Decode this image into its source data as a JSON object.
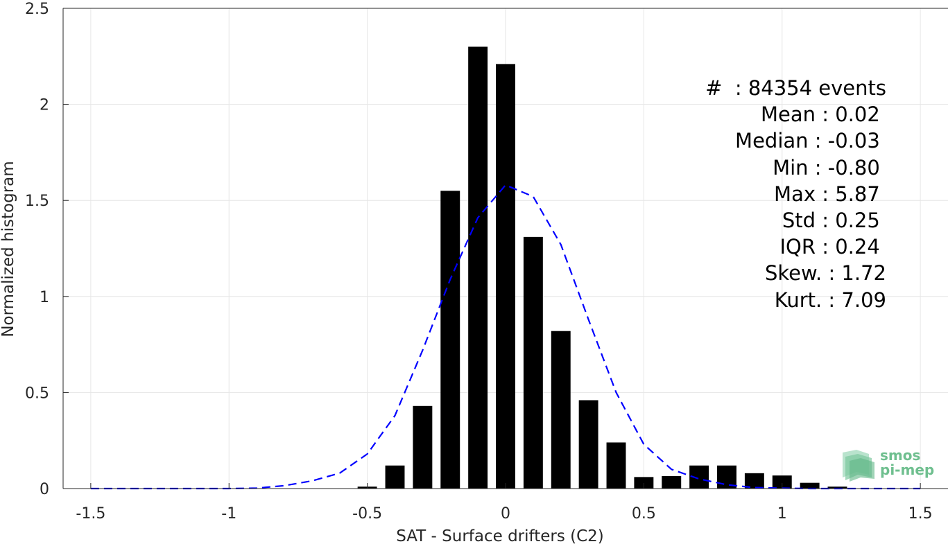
{
  "chart_data": {
    "type": "bar",
    "xlabel": "SAT - Surface drifters (C2)",
    "ylabel": "Normalized histogram",
    "xlim": [
      -1.6,
      1.6
    ],
    "ylim": [
      0,
      2.5
    ],
    "xticks": [
      -1.5,
      -1,
      -0.5,
      0,
      0.5,
      1,
      1.5
    ],
    "xtick_labels": [
      "-1.5",
      "-1",
      "-0.5",
      "0",
      "0.5",
      "1",
      "1.5"
    ],
    "yticks": [
      0,
      0.5,
      1,
      1.5,
      2,
      2.5
    ],
    "ytick_labels": [
      "0",
      "0.5",
      "1",
      "1.5",
      "2",
      "2.5"
    ],
    "grid": true,
    "bar_width": 0.07,
    "bars": {
      "x": [
        -0.5,
        -0.4,
        -0.3,
        -0.2,
        -0.1,
        0.0,
        0.1,
        0.2,
        0.3,
        0.4,
        0.5,
        0.6,
        0.7,
        0.8,
        0.9,
        1.0,
        1.1,
        1.2
      ],
      "values": [
        0.01,
        0.12,
        0.43,
        1.55,
        2.3,
        2.21,
        1.31,
        0.82,
        0.46,
        0.24,
        0.06,
        0.065,
        0.12,
        0.12,
        0.08,
        0.068,
        0.03,
        0.01
      ],
      "color": "#000000"
    },
    "gaussian_fit": {
      "x": [
        -1.5,
        -1.4,
        -1.3,
        -1.2,
        -1.1,
        -1.0,
        -0.9,
        -0.8,
        -0.7,
        -0.6,
        -0.5,
        -0.4,
        -0.3,
        -0.2,
        -0.1,
        0.0,
        0.1,
        0.2,
        0.3,
        0.4,
        0.5,
        0.6,
        0.7,
        0.8,
        0.9,
        1.0,
        1.1,
        1.2,
        1.3,
        1.4,
        1.5
      ],
      "y": [
        0,
        0,
        0,
        0,
        0,
        0,
        0.002,
        0.015,
        0.04,
        0.08,
        0.18,
        0.38,
        0.72,
        1.09,
        1.41,
        1.58,
        1.52,
        1.27,
        0.88,
        0.5,
        0.23,
        0.1,
        0.05,
        0.02,
        0.005,
        0.002,
        0,
        0,
        0,
        0,
        0
      ],
      "color": "#0000ff",
      "style": "dashed"
    },
    "annotation_lines": [
      "#  : 84354 events",
      "Mean : 0.02 ",
      "Median : -0.03 ",
      "Min : -0.80 ",
      "Max : 5.87 ",
      "Std : 0.25 ",
      "IQR : 0.24 ",
      "Skew. : 1.72",
      "Kurt. : 7.09"
    ]
  },
  "logo": {
    "line1": "smos",
    "line2": "pi-mep"
  }
}
